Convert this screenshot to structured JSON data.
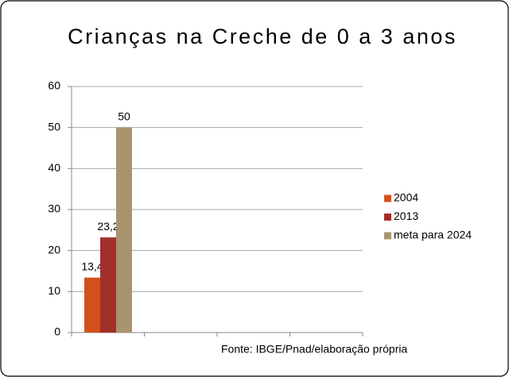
{
  "chart_data": {
    "type": "bar",
    "title": "Crianças na Creche de 0 a 3 anos",
    "source": "Fonte: IBGE/Pnad/elaboração própria",
    "categories": [
      null,
      null,
      null,
      null
    ],
    "series": [
      {
        "name": "2004",
        "color": "#d4501c",
        "values": [
          13.4,
          null,
          null,
          null
        ],
        "value_labels": [
          "13,4",
          null,
          null,
          null
        ]
      },
      {
        "name": "2013",
        "color": "#a2302a",
        "values": [
          23.2,
          null,
          null,
          null
        ],
        "value_labels": [
          "23,2",
          null,
          null,
          null
        ]
      },
      {
        "name": "meta para 2024",
        "color": "#a8946e",
        "values": [
          50,
          null,
          null,
          null
        ]
      }
    ],
    "ylim": [
      0,
      60
    ],
    "yticks": [
      0,
      10,
      20,
      30,
      40,
      50,
      60
    ],
    "grid": true,
    "legend": "right"
  }
}
